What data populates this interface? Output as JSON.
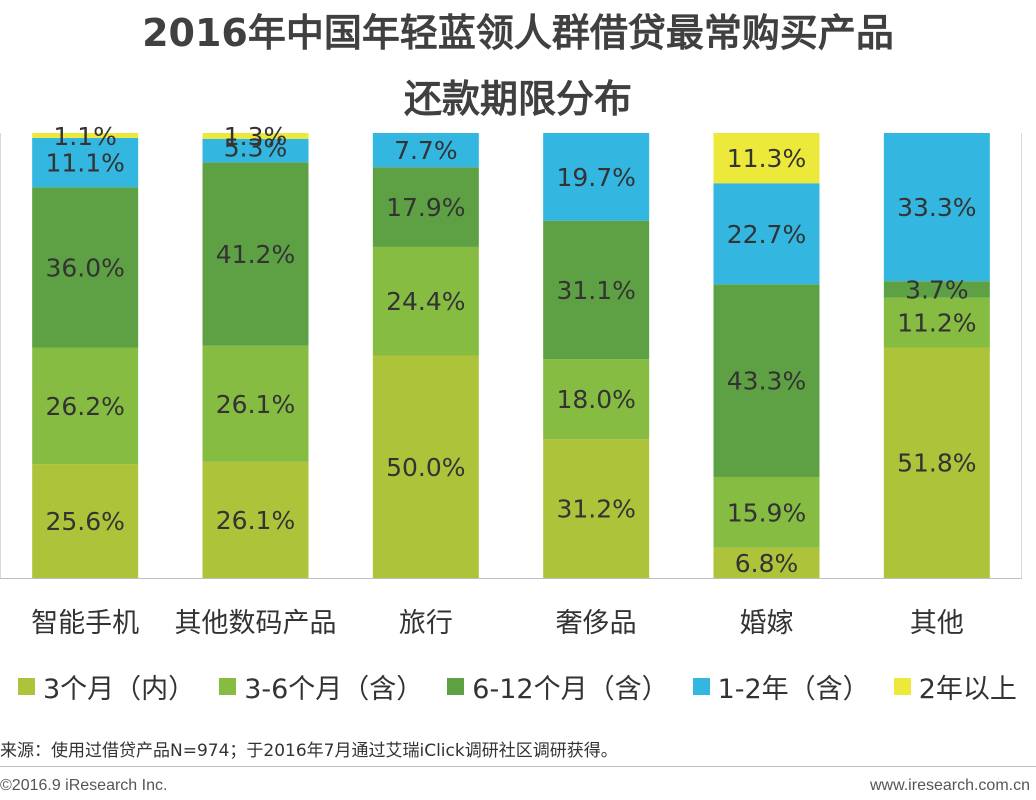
{
  "title_line1": "2016年中国年轻蓝领人群借贷最常购买产品",
  "title_line2": "还款期限分布",
  "chart_data": {
    "type": "bar",
    "stacked": true,
    "percent_stacked": true,
    "categories": [
      "智能手机",
      "其他数码产品",
      "旅行",
      "奢侈品",
      "婚嫁",
      "其他"
    ],
    "series": [
      {
        "name": "3个月（内）",
        "color": "#adc43a",
        "values": [
          25.6,
          26.1,
          50.0,
          31.2,
          6.8,
          51.8
        ],
        "labels": [
          "25.6%",
          "26.1%",
          "50.0%",
          "31.2%",
          "6.8%",
          "51.8%"
        ]
      },
      {
        "name": "3-6个月（含）",
        "color": "#86bc42",
        "values": [
          26.2,
          26.1,
          24.4,
          18.0,
          15.9,
          11.2
        ],
        "labels": [
          "26.2%",
          "26.1%",
          "24.4%",
          "18.0%",
          "15.9%",
          "11.2%"
        ]
      },
      {
        "name": "6-12个月（含）",
        "color": "#5ea144",
        "values": [
          36.0,
          41.2,
          17.9,
          31.1,
          43.3,
          3.7
        ],
        "labels": [
          "36.0%",
          "41.2%",
          "17.9%",
          "31.1%",
          "43.3%",
          "3.7%"
        ]
      },
      {
        "name": "1-2年（含）",
        "color": "#33b6e0",
        "values": [
          11.1,
          5.3,
          7.7,
          19.7,
          22.7,
          33.3
        ],
        "labels": [
          "11.1%",
          "5.3%",
          "7.7%",
          "19.7%",
          "22.7%",
          "33.3%"
        ]
      },
      {
        "name": "2年以上",
        "color": "#ede93a",
        "values": [
          1.1,
          1.3,
          0.0,
          0.0,
          11.3,
          0.0
        ],
        "labels": [
          "1.1%",
          "1.3%",
          "",
          "",
          "11.3%",
          ""
        ]
      }
    ],
    "ylim": [
      0,
      100
    ],
    "grid": false,
    "legend": "bottom"
  },
  "note": "来源：使用过借贷产品N=974；于2016年7月通过艾瑞iClick调研社区调研获得。",
  "copyright": "©2016.9 iResearch Inc.",
  "website": "www.iresearch.com.cn"
}
